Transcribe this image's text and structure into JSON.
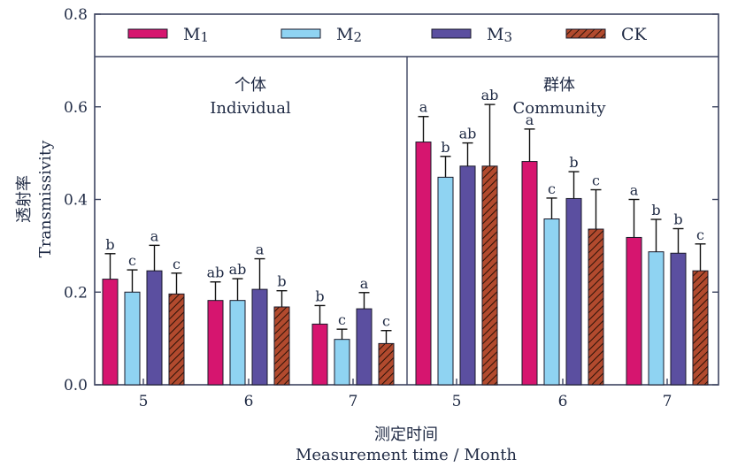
{
  "chart_data": {
    "type": "bar",
    "ylabel_cn": "透射率",
    "ylabel": "Transmissivity",
    "xlabel_cn": "测定时间",
    "xlabel": "Measurement time / Month",
    "ylim": [
      0,
      0.8
    ],
    "yticks": [
      "0.0",
      "0.2",
      "0.4",
      "0.6",
      "0.8"
    ],
    "panels": [
      {
        "name_cn": "个体",
        "name": "Individual"
      },
      {
        "name_cn": "群体",
        "name": "Community"
      }
    ],
    "categories": [
      "5",
      "6",
      "7",
      "5",
      "6",
      "7"
    ],
    "series": [
      {
        "name": "M",
        "sub": "1",
        "color": "#d6156f",
        "values": [
          0.228,
          0.182,
          0.131,
          0.524,
          0.482,
          0.318
        ],
        "errors": [
          0.055,
          0.04,
          0.04,
          0.055,
          0.07,
          0.082
        ],
        "letters": [
          "b",
          "ab",
          "b",
          "a",
          "a",
          "a"
        ]
      },
      {
        "name": "M",
        "sub": "2",
        "color": "#8fd3f2",
        "values": [
          0.2,
          0.182,
          0.098,
          0.448,
          0.358,
          0.287
        ],
        "errors": [
          0.048,
          0.047,
          0.022,
          0.045,
          0.045,
          0.07
        ],
        "letters": [
          "c",
          "ab",
          "c",
          "b",
          "c",
          "b"
        ]
      },
      {
        "name": "M",
        "sub": "3",
        "color": "#5b4fa0",
        "values": [
          0.246,
          0.206,
          0.164,
          0.472,
          0.402,
          0.284
        ],
        "errors": [
          0.055,
          0.066,
          0.035,
          0.05,
          0.058,
          0.053
        ],
        "letters": [
          "a",
          "a",
          "a",
          "ab",
          "b",
          "b"
        ]
      },
      {
        "name": "CK",
        "sub": "",
        "color": "#b24a2e",
        "hatch": true,
        "values": [
          0.196,
          0.168,
          0.089,
          0.472,
          0.336,
          0.246
        ],
        "errors": [
          0.045,
          0.035,
          0.028,
          0.133,
          0.085,
          0.058
        ],
        "letters": [
          "c",
          "b",
          "c",
          "ab",
          "c",
          "c"
        ]
      }
    ],
    "legend": "top",
    "grid": false
  }
}
